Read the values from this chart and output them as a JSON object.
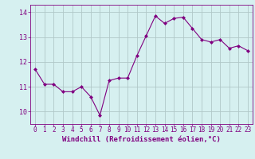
{
  "x": [
    0,
    1,
    2,
    3,
    4,
    5,
    6,
    7,
    8,
    9,
    10,
    11,
    12,
    13,
    14,
    15,
    16,
    17,
    18,
    19,
    20,
    21,
    22,
    23
  ],
  "y": [
    11.7,
    11.1,
    11.1,
    10.8,
    10.8,
    11.0,
    10.6,
    9.85,
    11.25,
    11.35,
    11.35,
    12.25,
    13.05,
    13.85,
    13.55,
    13.75,
    13.8,
    13.35,
    12.9,
    12.8,
    12.9,
    12.55,
    12.65,
    12.45
  ],
  "line_color": "#800080",
  "marker": "D",
  "marker_size": 2.0,
  "bg_color": "#d6f0f0",
  "grid_color": "#b0c8c8",
  "xlabel": "Windchill (Refroidissement éolien,°C)",
  "xlabel_color": "#800080",
  "tick_color": "#800080",
  "ylim": [
    9.5,
    14.3
  ],
  "xlim": [
    -0.5,
    23.5
  ],
  "yticks": [
    10,
    11,
    12,
    13,
    14
  ],
  "xticks": [
    0,
    1,
    2,
    3,
    4,
    5,
    6,
    7,
    8,
    9,
    10,
    11,
    12,
    13,
    14,
    15,
    16,
    17,
    18,
    19,
    20,
    21,
    22,
    23
  ],
  "xtick_labels": [
    "0",
    "1",
    "2",
    "3",
    "4",
    "5",
    "6",
    "7",
    "8",
    "9",
    "10",
    "11",
    "12",
    "13",
    "14",
    "15",
    "16",
    "17",
    "18",
    "19",
    "20",
    "21",
    "22",
    "23"
  ],
  "title_fontsize": 6,
  "tick_fontsize": 5.5,
  "ytick_fontsize": 6.0,
  "xlabel_fontsize": 6.5
}
